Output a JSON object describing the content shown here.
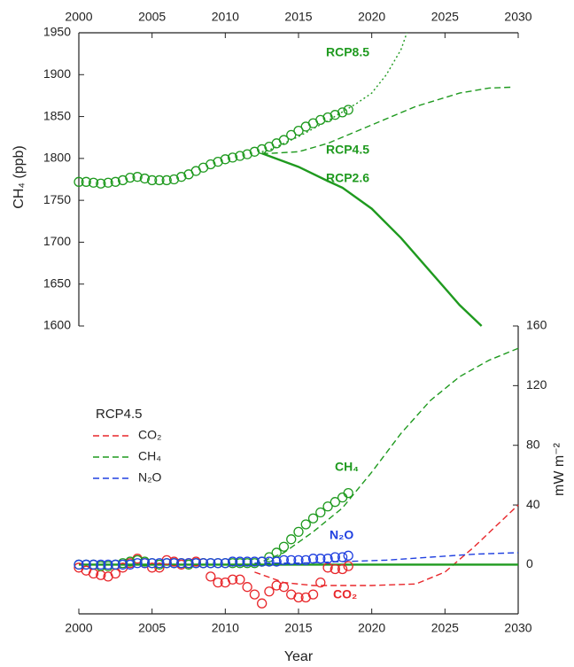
{
  "chart_data": [
    {
      "type": "line",
      "y_label": "CH₄ (ppb)",
      "xlim": [
        2000,
        2030
      ],
      "xticks": [
        2000,
        2005,
        2010,
        2015,
        2020,
        2025,
        2030
      ],
      "ylim": [
        1600,
        1950
      ],
      "yticks": [
        1600,
        1650,
        1700,
        1750,
        1800,
        1850,
        1900,
        1950
      ],
      "series": [
        {
          "color": "#1f9a1f",
          "style": "markers",
          "x": [
            2000,
            2000.5,
            2001,
            2001.5,
            2002,
            2002.5,
            2003,
            2003.5,
            2004,
            2004.5,
            2005,
            2005.5,
            2006,
            2006.5,
            2007,
            2007.5,
            2008,
            2008.5,
            2009,
            2009.5,
            2010,
            2010.5,
            2011,
            2011.5,
            2012,
            2012.5,
            2013,
            2013.5,
            2014,
            2014.5,
            2015,
            2015.5,
            2016,
            2016.5,
            2017,
            2017.5,
            2018,
            2018.4
          ],
          "values": [
            1772,
            1772,
            1771,
            1770,
            1771,
            1772,
            1774,
            1777,
            1778,
            1776,
            1774,
            1774,
            1774,
            1775,
            1778,
            1781,
            1785,
            1789,
            1793,
            1796,
            1799,
            1801,
            1803,
            1805,
            1808,
            1811,
            1814,
            1818,
            1822,
            1828,
            1833,
            1838,
            1842,
            1846,
            1849,
            1852,
            1855,
            1858
          ]
        },
        {
          "name": "RCP8.5",
          "color": "#1f9a1f",
          "style": "dotted",
          "x": [
            2012.5,
            2013,
            2015,
            2017,
            2019,
            2020,
            2021,
            2022,
            2022.4
          ],
          "values": [
            1808,
            1810,
            1826,
            1845,
            1866,
            1878,
            1900,
            1930,
            1950
          ]
        },
        {
          "name": "RCP4.5",
          "color": "#1f9a1f",
          "style": "dashed",
          "x": [
            2012.5,
            2013,
            2015,
            2017,
            2020,
            2023,
            2026,
            2028,
            2029.5
          ],
          "values": [
            1806,
            1806,
            1808,
            1818,
            1840,
            1862,
            1878,
            1884,
            1885
          ]
        },
        {
          "name": "RCP2.6",
          "color": "#1f9a1f",
          "style": "solid",
          "x": [
            2012.5,
            2015,
            2017,
            2018,
            2020,
            2022,
            2024,
            2026,
            2027.5
          ],
          "values": [
            1806,
            1790,
            1773,
            1765,
            1740,
            1705,
            1665,
            1625,
            1600
          ]
        }
      ]
    },
    {
      "type": "line",
      "x_label": "Year",
      "y_label": "mW m⁻²",
      "xlim": [
        2000,
        2030
      ],
      "xticks": [
        2000,
        2005,
        2010,
        2015,
        2020,
        2025,
        2030
      ],
      "ylim": [
        -33,
        160
      ],
      "yticks": [
        0,
        40,
        80,
        120,
        160
      ],
      "legend": "upper left",
      "legend_title": "RCP4.5",
      "series": [
        {
          "name": "CO₂",
          "color": "#e8262a",
          "style": "dashed",
          "in_legend": true,
          "x": [
            2012,
            2014,
            2016,
            2020,
            2023,
            2025,
            2027,
            2030
          ],
          "values": [
            -5,
            -12,
            -14,
            -14,
            -13,
            -5,
            12,
            40
          ]
        },
        {
          "name": "CH₄",
          "color": "#1f9a1f",
          "style": "dashed",
          "in_legend": true,
          "x": [
            2012,
            2014,
            2016,
            2018,
            2020,
            2022,
            2024,
            2026,
            2028,
            2030
          ],
          "values": [
            0,
            8,
            22,
            38,
            62,
            88,
            110,
            126,
            137,
            145
          ]
        },
        {
          "name": "N₂O",
          "color": "#2040e0",
          "style": "dashed",
          "in_legend": true,
          "x": [
            2012,
            2015,
            2018,
            2021,
            2024,
            2027,
            2030
          ],
          "values": [
            1,
            1,
            2,
            3,
            5,
            7,
            8
          ]
        },
        {
          "color": "#1f9a1f",
          "style": "solid",
          "in_legend": false,
          "x": [
            2000,
            2030
          ],
          "values": [
            0,
            0
          ]
        },
        {
          "name": "CO₂",
          "color": "#e8262a",
          "style": "markers",
          "in_legend": false,
          "x": [
            2000,
            2000.5,
            2001,
            2001.5,
            2002,
            2002.5,
            2003,
            2003.5,
            2004,
            2004.5,
            2005,
            2005.5,
            2006,
            2006.5,
            2007,
            2007.5,
            2008,
            2008.5,
            2009,
            2009.5,
            2010,
            2010.5,
            2011,
            2011.5,
            2012,
            2012.5,
            2013,
            2013.5,
            2014,
            2014.5,
            2015,
            2015.5,
            2016,
            2016.5,
            2017,
            2017.5,
            2018,
            2018.4
          ],
          "values": [
            -2,
            -4,
            -6,
            -7,
            -8,
            -6,
            -2,
            1,
            4,
            1,
            -2,
            -2,
            3,
            2,
            0,
            1,
            2,
            1,
            -8,
            -12,
            -12,
            -10,
            -10,
            -15,
            -20,
            -26,
            -18,
            -14,
            -15,
            -20,
            -22,
            -22,
            -20,
            -12,
            -2,
            -3,
            -3,
            -1
          ]
        },
        {
          "name": "CH₄",
          "color": "#1f9a1f",
          "style": "markers",
          "in_legend": false,
          "x": [
            2000,
            2000.5,
            2001,
            2001.5,
            2002,
            2002.5,
            2003,
            2003.5,
            2004,
            2004.5,
            2005,
            2005.5,
            2006,
            2006.5,
            2007,
            2007.5,
            2008,
            2008.5,
            2009,
            2009.5,
            2010,
            2010.5,
            2011,
            2011.5,
            2012,
            2012.5,
            2013,
            2013.5,
            2014,
            2014.5,
            2015,
            2015.5,
            2016,
            2016.5,
            2017,
            2017.5,
            2018,
            2018.4
          ],
          "values": [
            0,
            0,
            0,
            -1,
            -1,
            0,
            1,
            2,
            3,
            2,
            1,
            0,
            1,
            1,
            1,
            0,
            1,
            1,
            1,
            1,
            1,
            1,
            1,
            1,
            1,
            2,
            5,
            8,
            12,
            17,
            22,
            27,
            31,
            35,
            39,
            42,
            45,
            48
          ]
        },
        {
          "name": "N₂O",
          "color": "#2040e0",
          "style": "markers",
          "in_legend": false,
          "x": [
            2000,
            2000.5,
            2001,
            2001.5,
            2002,
            2002.5,
            2003,
            2003.5,
            2004,
            2004.5,
            2005,
            2005.5,
            2006,
            2006.5,
            2007,
            2007.5,
            2008,
            2008.5,
            2009,
            2009.5,
            2010,
            2010.5,
            2011,
            2011.5,
            2012,
            2012.5,
            2013,
            2013.5,
            2014,
            2014.5,
            2015,
            2015.5,
            2016,
            2016.5,
            2017,
            2017.5,
            2018,
            2018.4
          ],
          "values": [
            0,
            0,
            0,
            0,
            0,
            0,
            0,
            0,
            1,
            1,
            1,
            1,
            1,
            1,
            1,
            1,
            1,
            1,
            1,
            1,
            1,
            2,
            2,
            2,
            2,
            2,
            2,
            2,
            3,
            3,
            3,
            3,
            4,
            4,
            4,
            5,
            5,
            6
          ]
        }
      ]
    }
  ]
}
